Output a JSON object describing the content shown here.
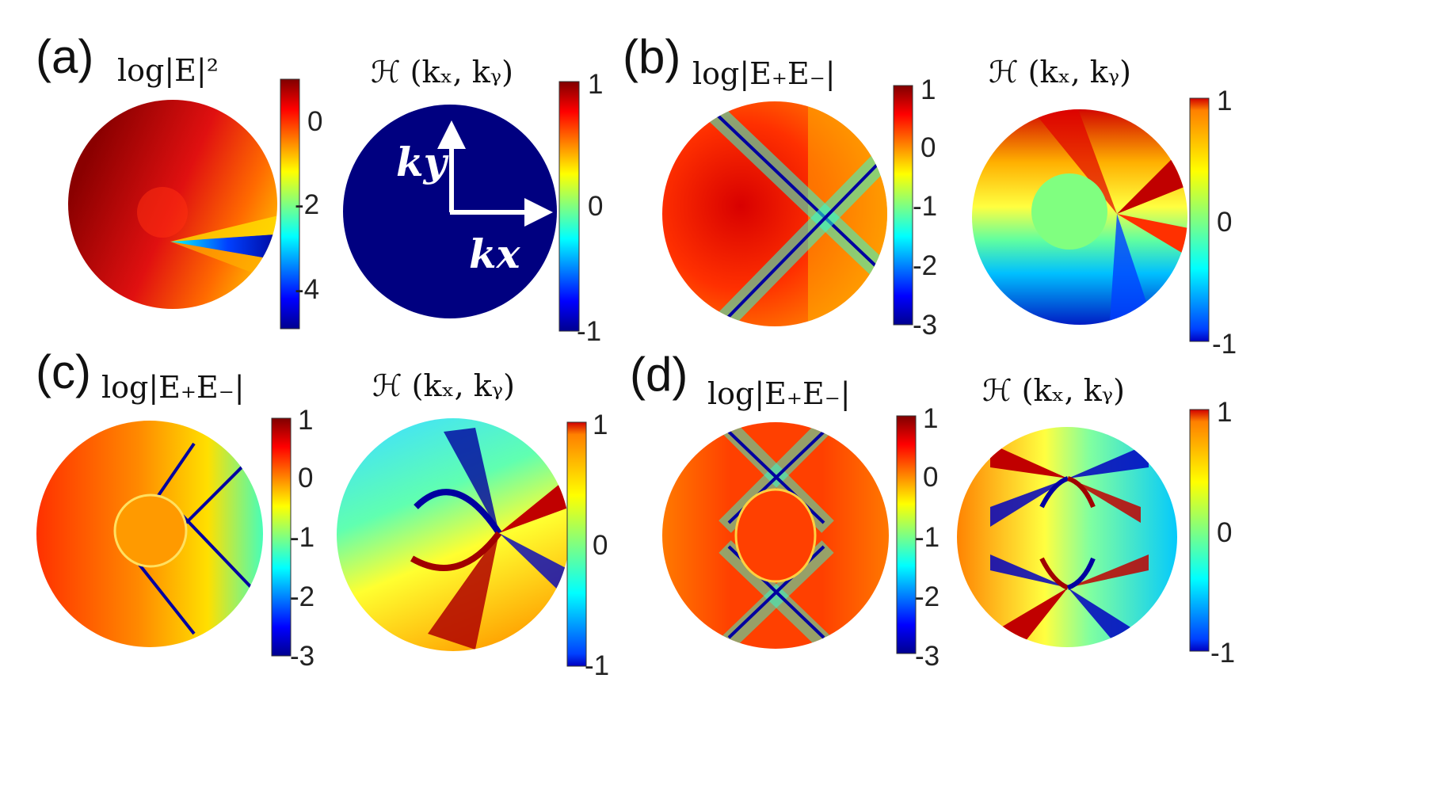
{
  "panels": {
    "a": {
      "letter": "(a)",
      "title_left": "log|E|²",
      "title_right": "ℋ (kₓ, kᵧ)",
      "cbar_left_ticks": [
        "0",
        "-2",
        "-4"
      ],
      "cbar_right_ticks": [
        "1",
        "0",
        "-1"
      ],
      "arrow_label_y": "ky",
      "arrow_label_x": "kx"
    },
    "b": {
      "letter": "(b)",
      "title_left": "log|E₊E₋|",
      "title_right": "ℋ (kₓ, kᵧ)",
      "cbar_left_ticks": [
        "1",
        "0",
        "-1",
        "-2",
        "-3"
      ],
      "cbar_right_ticks": [
        "1",
        "0",
        "-1"
      ]
    },
    "c": {
      "letter": "(c)",
      "title_left": "log|E₊E₋|",
      "title_right": "ℋ (kₓ, kᵧ)",
      "cbar_left_ticks": [
        "1",
        "0",
        "-1",
        "-2",
        "-3"
      ],
      "cbar_right_ticks": [
        "1",
        "0",
        "-1"
      ]
    },
    "d": {
      "letter": "(d)",
      "title_left": "log|E₊E₋|",
      "title_right": "ℋ (kₓ, kᵧ)",
      "cbar_left_ticks": [
        "1",
        "0",
        "-1",
        "-2",
        "-3"
      ],
      "cbar_right_ticks": [
        "1",
        "0",
        "-1"
      ]
    }
  },
  "colors": {
    "jet_dark_red": "#800000",
    "jet_red": "#ff0000",
    "jet_orange": "#ff8000",
    "jet_yellow": "#ffff00",
    "jet_cyan": "#00ffff",
    "jet_blue": "#0000ff",
    "jet_dark_blue": "#00008f"
  }
}
